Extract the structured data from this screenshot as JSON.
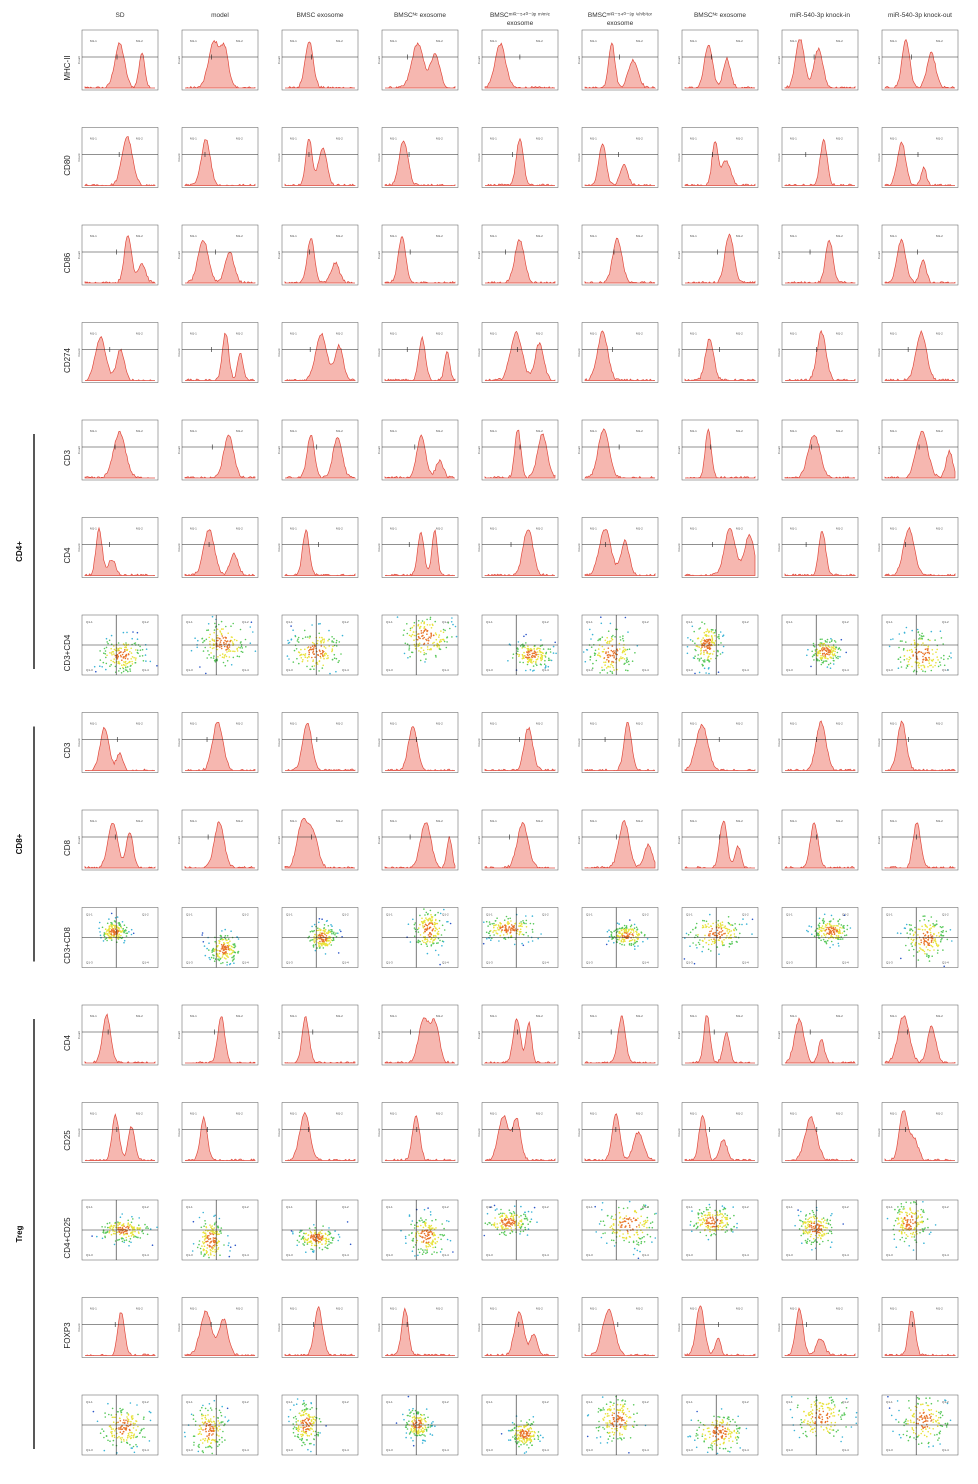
{
  "chart_data": {
    "type": "flow-cytometry-grid",
    "columns": [
      "SD",
      "model",
      "BMSC exosome",
      "BMSCᴺᶜ exosome",
      "BMSCᵐⁱᴿ⁻⁵⁴⁰⁻³ᵖ ᵐⁱᵐⁱᶜ",
      "BMSCᵐⁱᴿ⁻⁵⁴⁰⁻³ᵖ ⁱⁿʰⁱᵇⁱᵗᵒʳ",
      "BMSCᴺᶜ exosome",
      "miR-540-3p knock-in",
      "miR-540-3p knock-out"
    ],
    "column_subtitles": [
      "",
      "",
      "",
      "",
      "exosome",
      "exosome",
      "",
      "",
      ""
    ],
    "rows": [
      {
        "label": "MHC-II",
        "kind": "hist"
      },
      {
        "label": "CD80",
        "kind": "hist"
      },
      {
        "label": "CD86",
        "kind": "hist"
      },
      {
        "label": "CD274",
        "kind": "hist"
      },
      {
        "label": "CD3",
        "kind": "hist",
        "group": "CD4+"
      },
      {
        "label": "CD4",
        "kind": "hist",
        "group": "CD4+"
      },
      {
        "label": "CD3+CD4",
        "kind": "density",
        "group": "CD4+"
      },
      {
        "label": "CD3",
        "kind": "hist",
        "group": "CD8+"
      },
      {
        "label": "CD8",
        "kind": "hist",
        "group": "CD8+"
      },
      {
        "label": "CD3+CD8",
        "kind": "density",
        "group": "CD8+"
      },
      {
        "label": "CD4",
        "kind": "hist",
        "group": "Treg"
      },
      {
        "label": "CD25",
        "kind": "hist",
        "group": "Treg"
      },
      {
        "label": "CD4+CD25",
        "kind": "density",
        "group": "Treg"
      },
      {
        "label": "FOXP3",
        "kind": "hist",
        "group": "Treg"
      },
      {
        "label": "",
        "kind": "density",
        "group": "Treg"
      }
    ],
    "groups": [
      {
        "label": "CD4+",
        "from_row": 4,
        "to_row": 6
      },
      {
        "label": "CD8+",
        "from_row": 7,
        "to_row": 9
      },
      {
        "label": "Treg",
        "from_row": 10,
        "to_row": 14
      }
    ],
    "gate_labels": {
      "hist_left": "M1-1",
      "hist_right": "M1-2",
      "quadrants": [
        "Q1-1",
        "Q1-2",
        "Q1-3",
        "Q1-4"
      ]
    },
    "y_axis_label": "Count",
    "colors": {
      "histogram_fill": "#f6b7b0",
      "histogram_line": "#e0493c",
      "density": [
        "#2b55c8",
        "#39b3d6",
        "#58c85a",
        "#e8e23a",
        "#e8742a"
      ]
    }
  }
}
